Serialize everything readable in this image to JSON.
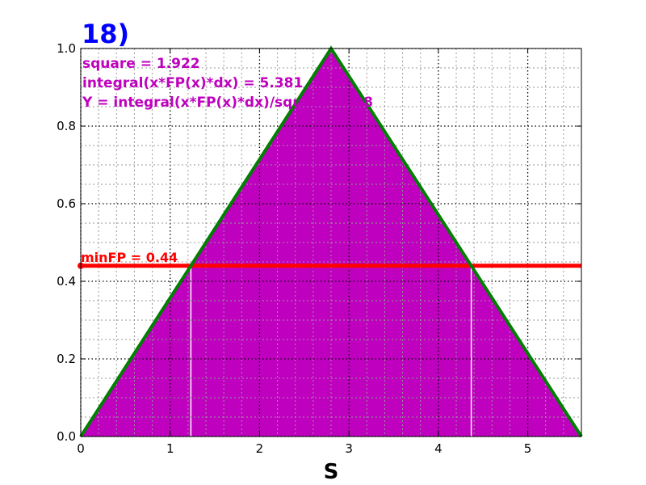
{
  "chart_data": {
    "type": "area",
    "title": "18)",
    "xlabel": "S",
    "ylabel": "",
    "xlim": [
      0,
      5.6
    ],
    "ylim": [
      0,
      1.0
    ],
    "x_ticks": [
      "0",
      "1",
      "2",
      "3",
      "4",
      "5"
    ],
    "x_tick_values": [
      0,
      1,
      2,
      3,
      4,
      5
    ],
    "y_ticks": [
      "0.0",
      "0.2",
      "0.4",
      "0.6",
      "0.8",
      "1.0"
    ],
    "y_tick_values": [
      0,
      0.2,
      0.4,
      0.6,
      0.8,
      1.0
    ],
    "x_minor_step": 0.2,
    "y_minor_step": 0.05,
    "grid": true,
    "series": [
      {
        "x": [
          0,
          2.8,
          5.6
        ],
        "y": [
          0,
          1.0,
          0
        ],
        "color": "#008000"
      }
    ],
    "min_fp": {
      "value": 0.44,
      "label": "minFP = 0.44",
      "color": "#ff0000"
    },
    "fill": {
      "color": "#bf00bf",
      "boundary_x": [
        1.232,
        4.368
      ]
    },
    "annotations": {
      "square": "square = 1.922",
      "integral": "integral(x*FP(x)*dx) = 5.381",
      "y_value": "Y = integral(x*FP(x)*dx)/square = 2.8",
      "color": "#bf00bf"
    },
    "title_color": "#0000ff"
  }
}
